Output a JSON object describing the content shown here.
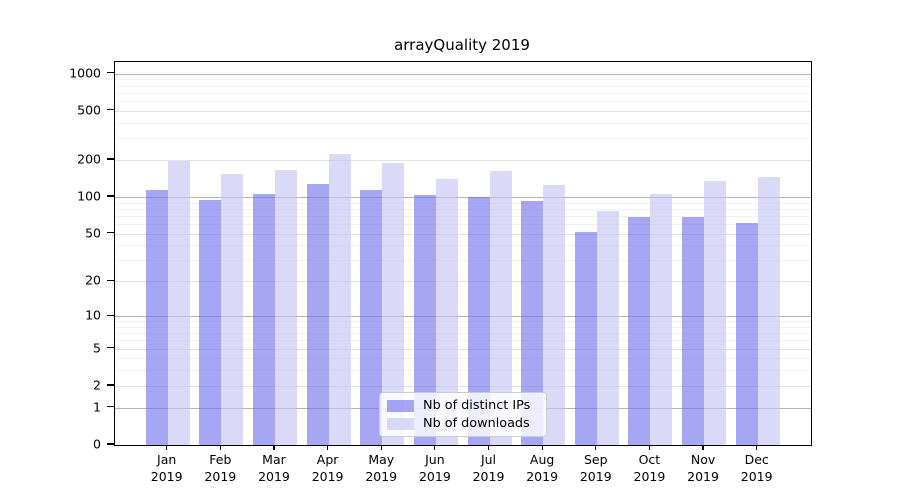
{
  "chart_data": {
    "type": "bar",
    "title": "arrayQuality 2019",
    "categories": [
      "Jan",
      "Feb",
      "Mar",
      "Apr",
      "May",
      "Jun",
      "Jul",
      "Aug",
      "Sep",
      "Oct",
      "Nov",
      "Dec"
    ],
    "x_year_label": "2019",
    "series": [
      {
        "key": "distinct-ips",
        "name": "Nb of distinct IPs",
        "color": "rgba(111,111,234,0.62)",
        "solid_color": "#a6a6f2",
        "values": [
          113,
          94,
          106,
          127,
          113,
          104,
          99,
          93,
          52,
          69,
          68,
          61
        ]
      },
      {
        "key": "downloads",
        "name": "Nb of downloads",
        "color": "rgba(195,195,244,0.62)",
        "solid_color": "#dadaf8",
        "values": [
          196,
          154,
          167,
          225,
          190,
          139,
          162,
          124,
          77,
          105,
          135,
          144
        ]
      }
    ],
    "y_axis": {
      "ticks": [
        0,
        1,
        2,
        5,
        10,
        20,
        50,
        100,
        200,
        500,
        1000
      ],
      "scale": "log10(value+1)",
      "range": [
        0,
        1244
      ]
    },
    "grid": {
      "power_line_color": "#b4b4b4",
      "major_line_color": "#e2e2e2",
      "minor_line_color": "#f2f2f2"
    },
    "legend": {
      "position": "lower-center"
    }
  }
}
